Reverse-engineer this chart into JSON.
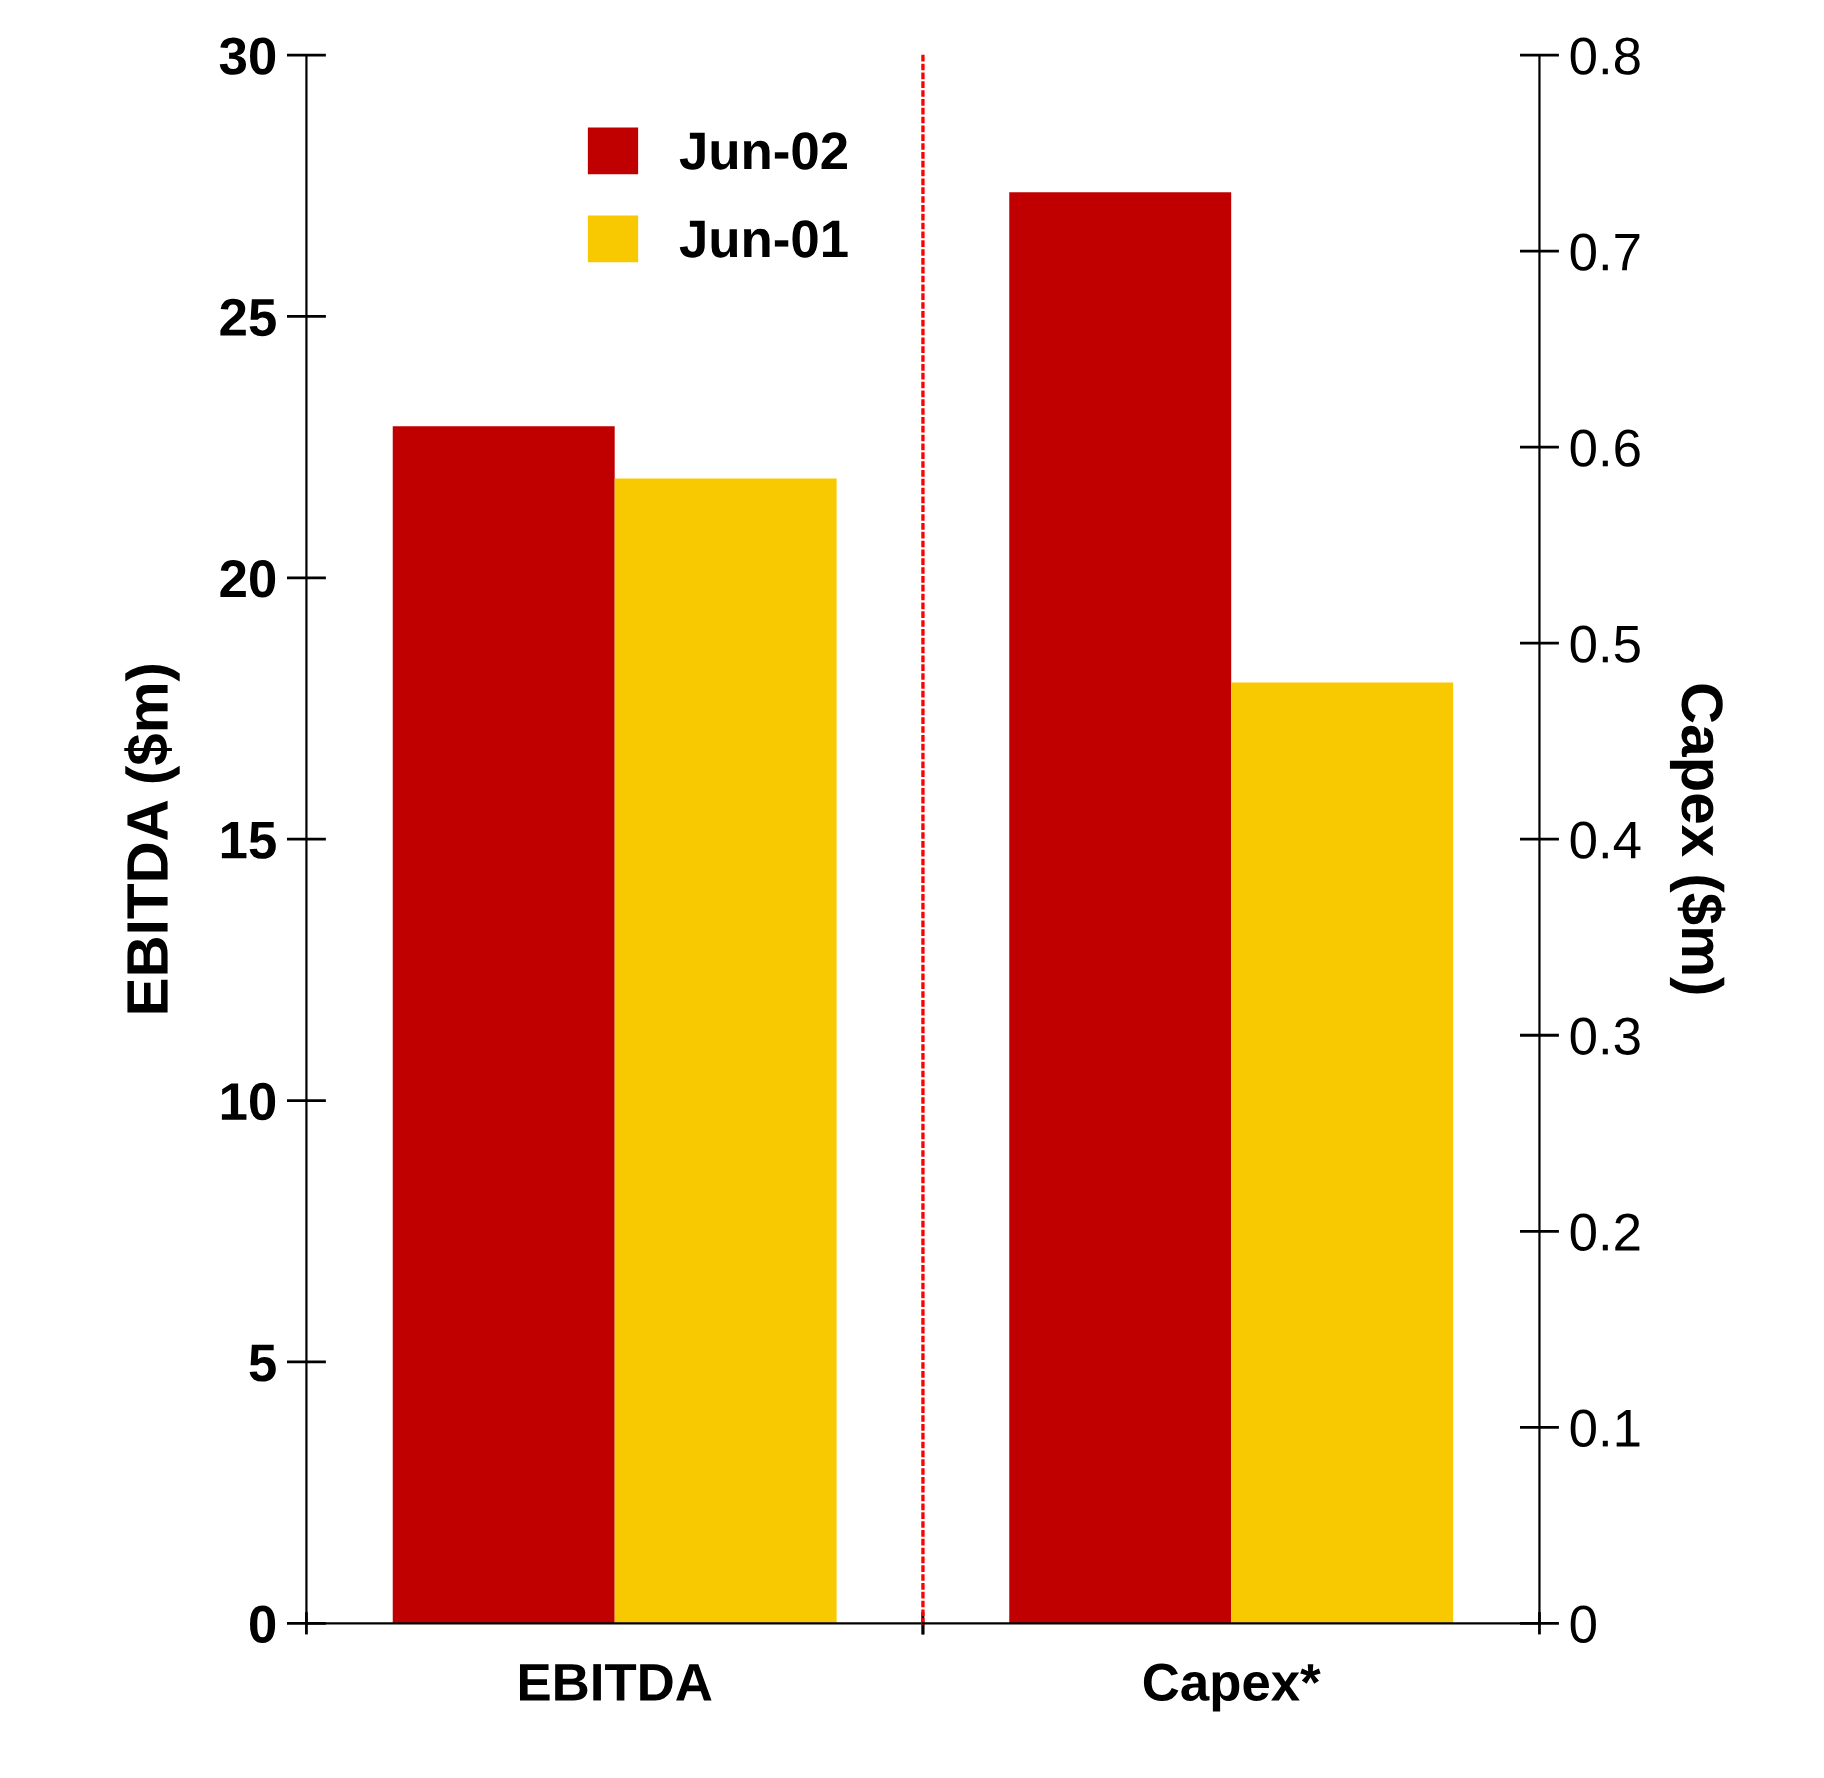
{
  "chart_data": [
    {
      "type": "bar",
      "categories": [
        "EBITDA"
      ],
      "ylabel": "EBITDA ($m)",
      "ylim": [
        0,
        30
      ],
      "yticks": [
        0,
        5,
        10,
        15,
        20,
        25,
        30
      ],
      "series": [
        {
          "name": "Jun-02",
          "color": "#c00000",
          "values": [
            22.9
          ]
        },
        {
          "name": "Jun-01",
          "color": "#f8c800",
          "values": [
            21.9
          ]
        }
      ],
      "legend": "top right",
      "grid": false
    },
    {
      "type": "bar",
      "categories": [
        "Capex*"
      ],
      "ylabel": "Capex ($m)",
      "ylim": [
        0,
        0.8
      ],
      "yticks": [
        0,
        0.1,
        0.2,
        0.3,
        0.4,
        0.5,
        0.6,
        0.7,
        0.8
      ],
      "series": [
        {
          "color": "#c00000",
          "values": [
            0.73
          ]
        },
        {
          "color": "#f8c800",
          "values": [
            0.48
          ]
        }
      ],
      "grid": false
    }
  ]
}
